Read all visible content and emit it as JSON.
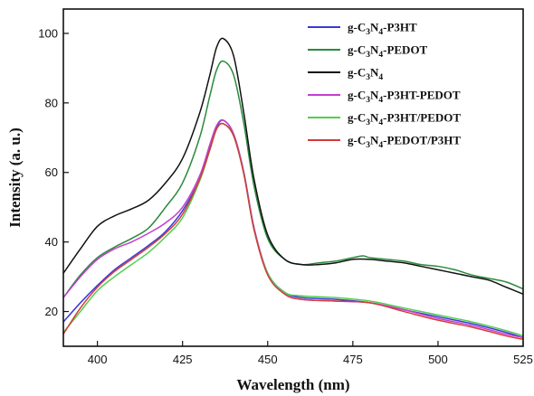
{
  "chart_data": {
    "type": "line",
    "xlabel": "Wavelength (nm)",
    "ylabel": "Intensity (a. u.)",
    "xlim": [
      390,
      525
    ],
    "ylim": [
      10,
      107
    ],
    "x_ticks": [
      400,
      425,
      450,
      475,
      500,
      525
    ],
    "y_ticks": [
      20,
      40,
      60,
      80,
      100
    ],
    "x_tick_labels": [
      "400",
      "425",
      "450",
      "475",
      "500",
      "525"
    ],
    "y_tick_labels": [
      "20",
      "40",
      "60",
      "80",
      "100"
    ],
    "legend_position": "top-right",
    "grid": false,
    "series": [
      {
        "name": "g-C3N4-P3HT",
        "legend": {
          "pre": "g-C",
          "s1": "3",
          "mid": "N",
          "s2": "4",
          "post": "-P3HT"
        },
        "color": "#3a3ad6",
        "x": [
          390,
          395,
          400,
          405,
          410,
          415,
          420,
          425,
          430,
          433,
          435,
          437,
          440,
          443,
          446,
          450,
          455,
          460,
          470,
          480,
          490,
          500,
          510,
          520,
          525
        ],
        "y": [
          17,
          22.5,
          27.5,
          32,
          35.5,
          39,
          43,
          49,
          58,
          67,
          73,
          75,
          71,
          60,
          44,
          31,
          25.5,
          24,
          23.5,
          22.5,
          20.5,
          18.5,
          16.5,
          14,
          12.5
        ]
      },
      {
        "name": "g-C3N4-PEDOT",
        "legend": {
          "pre": "g-C",
          "s1": "3",
          "mid": "N",
          "s2": "4",
          "post": "-PEDOT"
        },
        "color": "#2a8a3c",
        "x": [
          390,
          395,
          400,
          405,
          410,
          415,
          420,
          425,
          430,
          433,
          435,
          437,
          440,
          443,
          446,
          450,
          455,
          460,
          465,
          470,
          475,
          478,
          480,
          485,
          490,
          495,
          500,
          505,
          510,
          515,
          520,
          525
        ],
        "y": [
          24,
          30.5,
          35.5,
          38.5,
          41,
          44,
          50,
          57,
          70,
          82,
          89.5,
          92,
          88,
          74,
          56,
          41,
          35,
          33.5,
          34,
          34.5,
          35.5,
          36,
          35.5,
          35,
          34.5,
          33.5,
          33,
          32,
          30.5,
          29.5,
          28.5,
          26.5
        ]
      },
      {
        "name": "g-C3N4",
        "legend": {
          "pre": "g-C",
          "s1": "3",
          "mid": "N",
          "s2": "4",
          "post": ""
        },
        "color": "#111111",
        "x": [
          390,
          395,
          400,
          405,
          410,
          415,
          420,
          425,
          430,
          433,
          435,
          437,
          440,
          443,
          446,
          450,
          455,
          460,
          465,
          470,
          475,
          480,
          485,
          490,
          495,
          500,
          505,
          510,
          515,
          520,
          525
        ],
        "y": [
          31,
          38,
          44.5,
          47.5,
          49.5,
          52,
          57,
          64,
          77,
          88,
          96,
          98.5,
          93.5,
          77,
          58,
          42,
          35,
          33.5,
          33.5,
          34,
          35,
          35,
          34.5,
          34,
          33,
          32,
          31,
          30,
          29,
          27,
          25
        ]
      },
      {
        "name": "g-C3N4-P3HT-PEDOT",
        "legend": {
          "pre": "g-C",
          "s1": "3",
          "mid": "N",
          "s2": "4",
          "post": "-P3HT-PEDOT"
        },
        "color": "#c43ed0",
        "x": [
          390,
          395,
          400,
          405,
          410,
          415,
          420,
          425,
          430,
          433,
          435,
          437,
          440,
          443,
          446,
          450,
          455,
          460,
          470,
          480,
          490,
          500,
          510,
          520,
          525
        ],
        "y": [
          24,
          30,
          35,
          38,
          40,
          42.5,
          45.5,
          50,
          59,
          68,
          73.5,
          75,
          71,
          60,
          44,
          31,
          25,
          23.5,
          23,
          22.5,
          20.5,
          18,
          16,
          13.5,
          12.5
        ]
      },
      {
        "name": "g-C3N4-P3HT/PEDOT",
        "legend": {
          "pre": "g-C",
          "s1": "3",
          "mid": "N",
          "s2": "4",
          "post": "-P3HT/PEDOT"
        },
        "color": "#4fcf4f",
        "x": [
          390,
          395,
          400,
          405,
          410,
          415,
          420,
          425,
          430,
          433,
          435,
          437,
          440,
          443,
          446,
          450,
          455,
          460,
          470,
          480,
          490,
          500,
          510,
          520,
          525
        ],
        "y": [
          14,
          20,
          26,
          30,
          33.5,
          37,
          41.5,
          47,
          57.5,
          66.5,
          72.5,
          74,
          70.5,
          59.5,
          43.5,
          31,
          25.5,
          24.5,
          24,
          23,
          21,
          19,
          17,
          14.5,
          13
        ]
      },
      {
        "name": "g-C3N4-PEDOT/P3HT",
        "legend": {
          "pre": "g-C",
          "s1": "3",
          "mid": "N",
          "s2": "4",
          "post": "-PEDOT/P3HT"
        },
        "color": "#d43a3a",
        "x": [
          390,
          395,
          400,
          405,
          410,
          415,
          420,
          425,
          430,
          433,
          435,
          437,
          440,
          443,
          446,
          450,
          455,
          460,
          470,
          480,
          490,
          500,
          510,
          520,
          525
        ],
        "y": [
          13.5,
          21,
          27,
          31.5,
          35,
          38.5,
          42.5,
          48,
          58,
          66.5,
          72.5,
          74,
          70.5,
          59.5,
          43.5,
          30.5,
          25,
          23.5,
          23,
          22.5,
          20,
          17.5,
          15.5,
          13,
          12
        ]
      }
    ]
  }
}
